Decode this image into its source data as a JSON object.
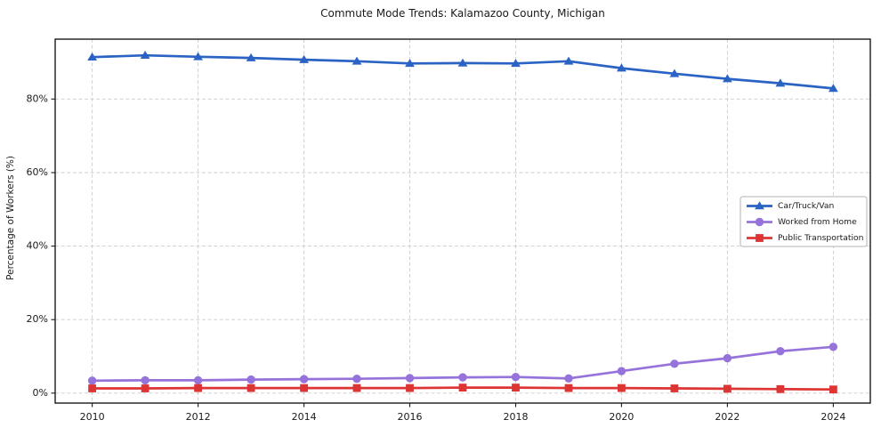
{
  "chart_data": {
    "type": "line",
    "title": "Commute Mode Trends: Kalamazoo County, Michigan",
    "xlabel": "",
    "ylabel": "Percentage of Workers (%)",
    "x": [
      2010,
      2011,
      2012,
      2013,
      2014,
      2015,
      2016,
      2017,
      2018,
      2019,
      2020,
      2021,
      2022,
      2023,
      2024
    ],
    "series": [
      {
        "name": "Car/Truck/Van",
        "color": "#2a63c4",
        "marker": "triangle",
        "values": [
          91.4,
          91.9,
          91.5,
          91.2,
          90.7,
          90.3,
          89.7,
          89.8,
          89.7,
          90.3,
          88.4,
          86.9,
          85.5,
          84.3,
          82.9
        ]
      },
      {
        "name": "Worked from Home",
        "color": "#9673db",
        "marker": "circle",
        "values": [
          3.4,
          3.5,
          3.5,
          3.7,
          3.8,
          3.9,
          4.1,
          4.3,
          4.4,
          4.0,
          6.0,
          8.0,
          9.5,
          11.4,
          12.6
        ]
      },
      {
        "name": "Public Transportation",
        "color": "#dd3434",
        "marker": "square",
        "values": [
          1.3,
          1.3,
          1.4,
          1.4,
          1.4,
          1.4,
          1.4,
          1.5,
          1.5,
          1.4,
          1.4,
          1.3,
          1.2,
          1.1,
          1.0
        ]
      }
    ],
    "xticks": [
      2010,
      2012,
      2014,
      2016,
      2018,
      2020,
      2022,
      2024
    ],
    "ytick_values": [
      0,
      20,
      40,
      60,
      80
    ],
    "ytick_labels": [
      "0%",
      "20%",
      "40%",
      "60%",
      "80%"
    ],
    "xlim": [
      2009.3,
      2024.7
    ],
    "ylim": [
      -2.7,
      96.3
    ],
    "grid": true,
    "grid_color": "#cccccc",
    "axis_color": "#1a1a1a",
    "legend": {
      "position": "center right"
    }
  }
}
